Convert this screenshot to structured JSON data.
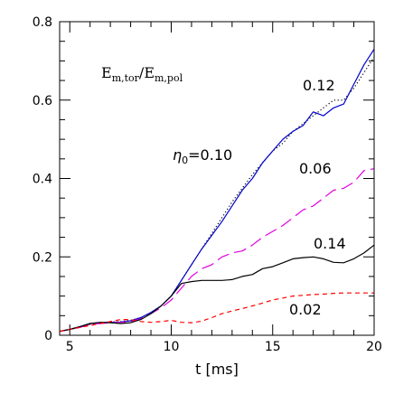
{
  "chart_data": {
    "type": "line",
    "xlabel": "t [ms]",
    "ylabel": {
      "main_e": "E",
      "sub_tor": "m,tor",
      "slash": "/",
      "sub_pol": "m,pol"
    },
    "xlim": [
      4.5,
      20
    ],
    "ylim": [
      0,
      0.8
    ],
    "xticks": [
      5,
      10,
      15,
      20
    ],
    "xtick_labels": [
      "5",
      "10",
      "15",
      "20"
    ],
    "yticks": [
      0,
      0.2,
      0.4,
      0.6,
      0.8
    ],
    "ytick_labels": [
      "0",
      "0.2",
      "0.4",
      "0.6",
      "0.8"
    ],
    "grid": false,
    "series": [
      {
        "label": "0.12",
        "color": "#000000",
        "dash": "dotted",
        "x": [
          4.5,
          5.0,
          5.5,
          6.0,
          6.5,
          7.0,
          7.5,
          8.0,
          8.5,
          9.0,
          9.5,
          10.0,
          10.5,
          11.0,
          11.5,
          12.0,
          12.5,
          13.0,
          13.5,
          14.0,
          14.5,
          15.0,
          15.5,
          16.0,
          16.5,
          17.0,
          17.5,
          18.0,
          18.5,
          19.0,
          19.5,
          20.0
        ],
        "y": [
          0.01,
          0.015,
          0.02,
          0.028,
          0.032,
          0.034,
          0.035,
          0.038,
          0.045,
          0.058,
          0.075,
          0.1,
          0.14,
          0.18,
          0.22,
          0.26,
          0.3,
          0.34,
          0.375,
          0.41,
          0.44,
          0.47,
          0.49,
          0.52,
          0.54,
          0.56,
          0.58,
          0.6,
          0.6,
          0.63,
          0.67,
          0.71
        ]
      },
      {
        "label": "0.10",
        "label_prefix": "η",
        "label_sub": "0",
        "label_eq": "=",
        "color": "#0000cc",
        "dash": "solid",
        "x": [
          4.5,
          5.0,
          5.5,
          6.0,
          6.5,
          7.0,
          7.5,
          8.0,
          8.5,
          9.0,
          9.5,
          10.0,
          10.5,
          11.0,
          11.5,
          12.0,
          12.5,
          13.0,
          13.5,
          14.0,
          14.5,
          15.0,
          15.5,
          16.0,
          16.5,
          17.0,
          17.5,
          18.0,
          18.5,
          19.0,
          19.5,
          20.0
        ],
        "y": [
          0.01,
          0.015,
          0.022,
          0.03,
          0.032,
          0.033,
          0.034,
          0.037,
          0.045,
          0.058,
          0.075,
          0.1,
          0.14,
          0.18,
          0.22,
          0.255,
          0.29,
          0.33,
          0.37,
          0.4,
          0.44,
          0.47,
          0.5,
          0.52,
          0.535,
          0.57,
          0.56,
          0.58,
          0.59,
          0.64,
          0.69,
          0.73
        ]
      },
      {
        "label": "0.06",
        "color": "#e000e0",
        "dash": "longdash",
        "x": [
          4.5,
          5.0,
          5.5,
          6.0,
          6.5,
          7.0,
          7.5,
          8.0,
          8.5,
          9.0,
          9.5,
          10.0,
          10.5,
          11.0,
          11.5,
          12.0,
          12.5,
          13.0,
          13.5,
          14.0,
          14.5,
          15.0,
          15.5,
          16.0,
          16.5,
          17.0,
          17.5,
          18.0,
          18.5,
          19.0,
          19.5,
          20.0
        ],
        "y": [
          0.01,
          0.015,
          0.02,
          0.028,
          0.03,
          0.032,
          0.033,
          0.035,
          0.042,
          0.055,
          0.07,
          0.09,
          0.12,
          0.15,
          0.17,
          0.18,
          0.2,
          0.21,
          0.215,
          0.23,
          0.25,
          0.265,
          0.28,
          0.3,
          0.32,
          0.33,
          0.35,
          0.37,
          0.375,
          0.39,
          0.42,
          0.425
        ]
      },
      {
        "label": "0.14",
        "color": "#000000",
        "dash": "solid",
        "x": [
          4.5,
          5.0,
          5.5,
          6.0,
          6.5,
          7.0,
          7.5,
          8.0,
          8.5,
          9.0,
          9.5,
          10.0,
          10.5,
          11.0,
          11.5,
          12.0,
          12.5,
          13.0,
          13.5,
          14.0,
          14.5,
          15.0,
          15.5,
          16.0,
          16.5,
          17.0,
          17.5,
          18.0,
          18.5,
          19.0,
          19.5,
          20.0
        ],
        "y": [
          0.01,
          0.015,
          0.022,
          0.03,
          0.033,
          0.032,
          0.03,
          0.032,
          0.04,
          0.055,
          0.075,
          0.1,
          0.132,
          0.137,
          0.14,
          0.14,
          0.14,
          0.142,
          0.15,
          0.155,
          0.17,
          0.175,
          0.185,
          0.195,
          0.198,
          0.2,
          0.195,
          0.186,
          0.185,
          0.195,
          0.21,
          0.23
        ]
      },
      {
        "label": "0.02",
        "color": "#ff0000",
        "dash": "shortdash",
        "x": [
          4.5,
          5.0,
          5.5,
          6.0,
          6.5,
          7.0,
          7.5,
          8.0,
          8.5,
          9.0,
          9.5,
          10.0,
          10.5,
          11.0,
          11.5,
          12.0,
          12.5,
          13.0,
          13.5,
          14.0,
          14.5,
          15.0,
          15.5,
          16.0,
          16.5,
          17.0,
          17.5,
          18.0,
          18.5,
          19.0,
          19.5,
          20.0
        ],
        "y": [
          0.01,
          0.015,
          0.02,
          0.025,
          0.03,
          0.035,
          0.04,
          0.04,
          0.035,
          0.033,
          0.035,
          0.038,
          0.033,
          0.032,
          0.036,
          0.045,
          0.055,
          0.062,
          0.068,
          0.075,
          0.082,
          0.09,
          0.095,
          0.1,
          0.102,
          0.104,
          0.105,
          0.107,
          0.108,
          0.108,
          0.108,
          0.108
        ]
      }
    ]
  }
}
